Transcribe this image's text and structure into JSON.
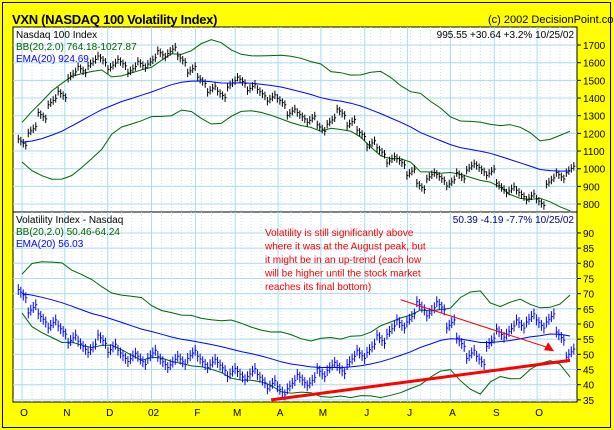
{
  "header": {
    "title": "VXN (NASDAQ 100 Volatility Index)",
    "copyright": "(c) 2002 DecisionPoint.com"
  },
  "chart_data": [
    {
      "type": "line",
      "title": "Nasdaq 100 Index",
      "bb_label": "BB(20,2.0) 764.18-1027.87",
      "ema_label": "EMA(20) 924.69",
      "readout": "995.55  +30.64  +3.2%  10/25/02",
      "ylim": [
        755,
        1802
      ],
      "yticks": [
        800,
        900,
        1000,
        1100,
        1200,
        1300,
        1400,
        1500,
        1600,
        1700
      ],
      "series_name": "Nasdaq 100 weekly close (approx.)",
      "values": [
        1150,
        1220,
        1300,
        1380,
        1420,
        1530,
        1560,
        1600,
        1620,
        1580,
        1600,
        1560,
        1590,
        1610,
        1650,
        1670,
        1620,
        1560,
        1500,
        1450,
        1420,
        1480,
        1500,
        1460,
        1430,
        1400,
        1380,
        1320,
        1300,
        1280,
        1230,
        1270,
        1320,
        1260,
        1200,
        1140,
        1100,
        1050,
        1040,
        980,
        900,
        960,
        950,
        920,
        960,
        1010,
        1000,
        980,
        900,
        880,
        860,
        840,
        810,
        930,
        960,
        995.55
      ],
      "colors": {
        "bars": "#000000",
        "ema": "#0000ff",
        "bb": "#006400"
      }
    },
    {
      "type": "line",
      "title": "Volatility Index - Nasdaq",
      "bb_label": "BB(20,2.0) 50.46-64.24",
      "ema_label": "EMA(20) 56.03",
      "readout": "50.39  -4.19  -7.7%  10/25/02",
      "ylim": [
        34.3,
        96.9
      ],
      "yticks": [
        35,
        40,
        45,
        50,
        55,
        60,
        65,
        70,
        75,
        80,
        85,
        90
      ],
      "series_name": "VXN weekly close (approx.)",
      "values": [
        70,
        65,
        62,
        60,
        58,
        55,
        53,
        52,
        55,
        52,
        50,
        49,
        48,
        50,
        48,
        47,
        48,
        50,
        48,
        47,
        46,
        44,
        43,
        44,
        42,
        40,
        38,
        40,
        42,
        41,
        44,
        46,
        45,
        48,
        50,
        52,
        55,
        58,
        60,
        62,
        66,
        64,
        66,
        60,
        54,
        50,
        48,
        54,
        57,
        58,
        60,
        62,
        60,
        62,
        56,
        50.39
      ],
      "annotation": [
        "Volatility is still significantly above",
        "where it was at the August peak, but",
        "it might be in an up-trend (each low",
        "will be higher until the stock market",
        "reaches its final bottom)"
      ],
      "trendlines": [
        {
          "from": [
            25,
            35
          ],
          "to": [
            55,
            48
          ],
          "color": "#ff0000"
        },
        {
          "from": [
            38,
            68
          ],
          "to": [
            53,
            52
          ],
          "color": "#ff0000"
        }
      ],
      "colors": {
        "bars": "#0000ff",
        "ema": "#0000ff",
        "bb": "#006400"
      }
    }
  ],
  "x_axis": {
    "labels": [
      "O",
      "N",
      "D",
      "02",
      "F",
      "M",
      "A",
      "M",
      "J",
      "J",
      "A",
      "S",
      "O"
    ],
    "week_index": [
      0,
      4.3,
      8.6,
      13,
      17.4,
      21.4,
      25.7,
      30,
      34.4,
      38.7,
      43,
      47.4,
      51.7
    ]
  }
}
